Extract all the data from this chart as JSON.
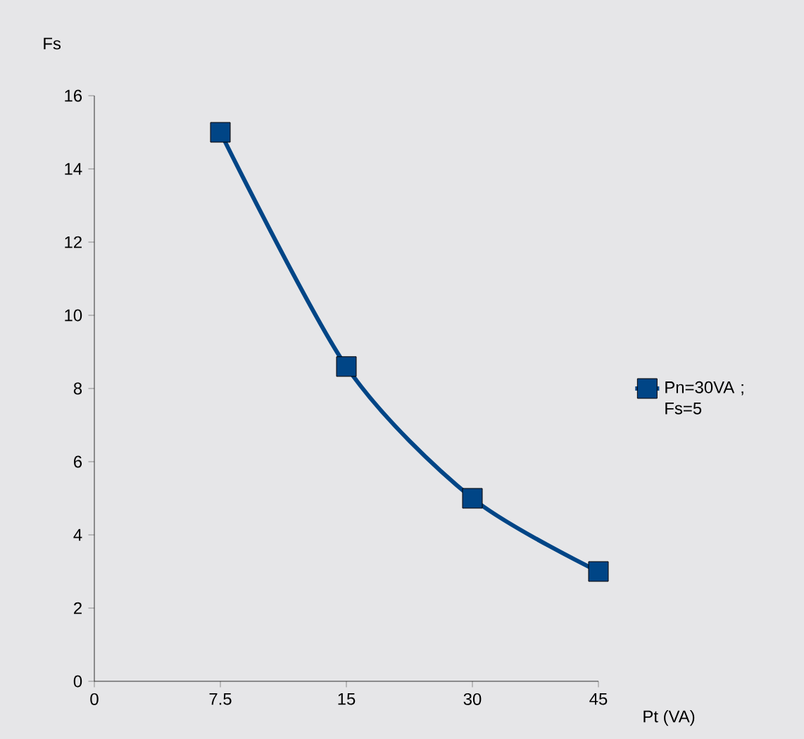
{
  "chart_data": {
    "type": "line",
    "xlabel": "Pt (VA)",
    "ylabel": "Fs",
    "categories": [
      "0",
      "7.5",
      "15",
      "30",
      "45"
    ],
    "series": [
      {
        "name": "Pn=30VA ; Fs=5",
        "color": "#004586",
        "values": [
          null,
          15,
          8.6,
          5,
          3
        ]
      }
    ],
    "ylim": [
      0,
      16
    ],
    "yticks": [
      0,
      2,
      4,
      6,
      8,
      10,
      12,
      14,
      16
    ],
    "grid": false,
    "legend": "right",
    "marker": "square",
    "line_style": "solid"
  }
}
